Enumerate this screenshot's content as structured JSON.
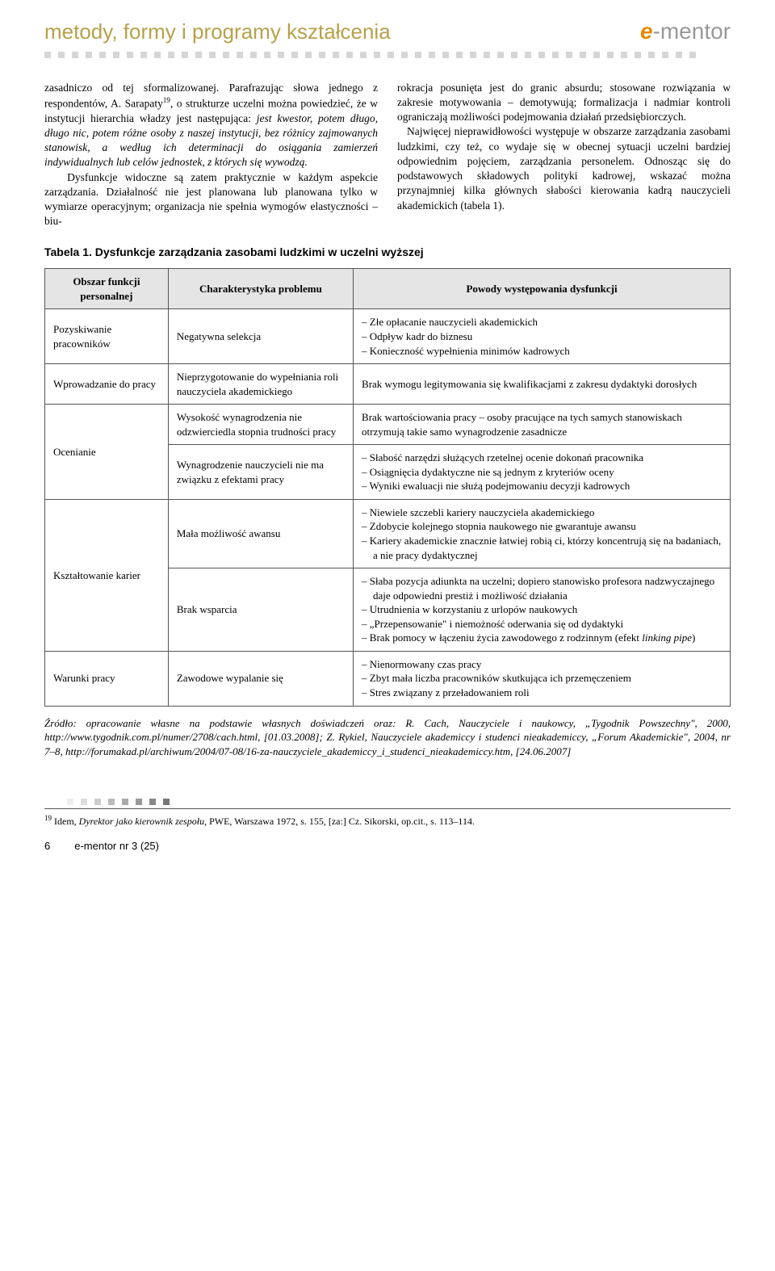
{
  "header": {
    "section_title": "metody, formy i programy kształcenia",
    "logo_e": "e",
    "logo_dash": "-",
    "logo_mentor": "mentor"
  },
  "body": {
    "left_col": "zasadniczo od tej sformalizowanej. Parafrazując słowa jednego z respondentów, A. Sarapaty<sup>19</sup>, o strukturze uczelni można powiedzieć, że w instytucji hierarchia władzy jest następująca: <em>jest kwestor, potem długo, długo nic, potem różne osoby z naszej instytucji, bez różnicy zajmowanych stanowisk, a według ich determinacji do osiągania zamierzeń indywidualnych lub celów jednostek, z których się wywodzą.</em><br>&nbsp;&nbsp;&nbsp;Dysfunkcje widoczne są zatem praktycznie w każdym aspekcie zarządzania. Działalność nie jest planowana lub planowana tylko w wymiarze operacyjnym; organizacja nie spełnia wymogów elastyczności – biu-",
    "right_col": "rokracja posunięta jest do granic absurdu; stosowane rozwiązania w zakresie motywowania – demotywują; formalizacja i nadmiar kontroli ograniczają możliwości podejmowania działań przedsiębiorczych.<br>&nbsp;&nbsp;&nbsp;Najwięcej nieprawidłowości występuje w obszarze zarządzania zasobami ludzkimi, czy też, co wydaje się w obecnej sytuacji uczelni bardziej odpowiednim pojęciem, zarządzania personelem. Odnosząc się do podstawowych składowych polityki kadrowej, wskazać można przynajmniej kilka głównych słabości kierowania kadrą nauczycieli akademickich (tabela 1)."
  },
  "table": {
    "title": "Tabela 1. Dysfunkcje zarządzania zasobami ludzkimi w uczelni wyższej",
    "headers": {
      "c1": "Obszar funkcji personalnej",
      "c2": "Charakterystyka problemu",
      "c3": "Powody występowania dysfunkcji"
    },
    "rows": {
      "r1c1": "Pozyskiwanie pracowników",
      "r1c2": "Negatywna selekcja",
      "r1c3_1": "Złe opłacanie nauczycieli akademickich",
      "r1c3_2": "Odpływ kadr do biznesu",
      "r1c3_3": "Konieczność wypełnienia minimów kadrowych",
      "r2c1": "Wprowadzanie do pracy",
      "r2c2": "Nieprzygotowanie do wypełniania roli nauczyciela akademickiego",
      "r2c3": "Brak wymogu legitymowania się kwalifikacjami z zakresu dydaktyki dorosłych",
      "r3c1": "Ocenianie",
      "r3ac2": "Wysokość wynagrodzenia nie odzwierciedla stopnia trudności pracy",
      "r3ac3": "Brak wartościowania pracy – osoby pracujące na tych samych stanowiskach otrzymują takie samo wynagrodzenie zasadnicze",
      "r3bc2": "Wynagrodzenie nauczycieli nie ma związku z efektami pracy",
      "r3bc3_1": "Słabość narzędzi służących rzetelnej ocenie dokonań pracownika",
      "r3bc3_2": "Osiągnięcia dydaktyczne nie są jednym z kryteriów oceny",
      "r3bc3_3": "Wyniki ewaluacji nie służą podejmowaniu decyzji kadrowych",
      "r4c1": "Kształtowanie karier",
      "r4ac2": "Mała możliwość awansu",
      "r4ac3_1": "Niewiele szczebli kariery nauczyciela akademickiego",
      "r4ac3_2": "Zdobycie kolejnego stopnia naukowego nie gwarantuje awansu",
      "r4ac3_3": "Kariery akademickie znacznie łatwiej robią ci, którzy koncentrują się na badaniach, a nie pracy dydaktycznej",
      "r4bc2": "Brak wsparcia",
      "r4bc3_1": "Słaba pozycja adiunkta na uczelni; dopiero stanowisko profesora nadzwyczajnego daje odpowiedni prestiż i możliwość działania",
      "r4bc3_2": "Utrudnienia w korzystaniu z urlopów naukowych",
      "r4bc3_3": "„Przepensowanie\" i niemożność oderwania się od dydaktyki",
      "r4bc3_4": "Brak pomocy w łączeniu życia zawodowego z rodzinnym (efekt <em>linking pipe</em>)",
      "r5c1": "Warunki pracy",
      "r5c2": "Zawodowe wypalanie się",
      "r5c3_1": "Nienormowany czas pracy",
      "r5c3_2": "Zbyt mała liczba pracowników skutkująca ich przemęczeniem",
      "r5c3_3": "Stres związany z przeładowaniem roli"
    },
    "source": "Źródło: opracowanie własne na podstawie własnych doświadczeń oraz: R. Cach, Nauczyciele i naukowcy, „Tygodnik Powszechny\", 2000, http://www.tygodnik.com.pl/numer/2708/cach.html, [01.03.2008]; Z. Rykiel, Nauczyciele akademiccy i studenci nieakademiccy, „Forum Akademickie\", 2004, nr 7–8, http://forumakad.pl/archiwum/2004/07-08/16-za-nauczyciele_akademiccy_i_studenci_nieakademiccy.htm, [24.06.2007]"
  },
  "footnote": "<sup>19</sup> Idem, <em>Dyrektor jako kierownik zespołu</em>, PWE, Warszawa 1972, s. 155, [za:] Cz. Sikorski, op.cit., s. 113–114.",
  "footer": {
    "page": "6",
    "journal": "e-mentor nr 3 (25)"
  }
}
